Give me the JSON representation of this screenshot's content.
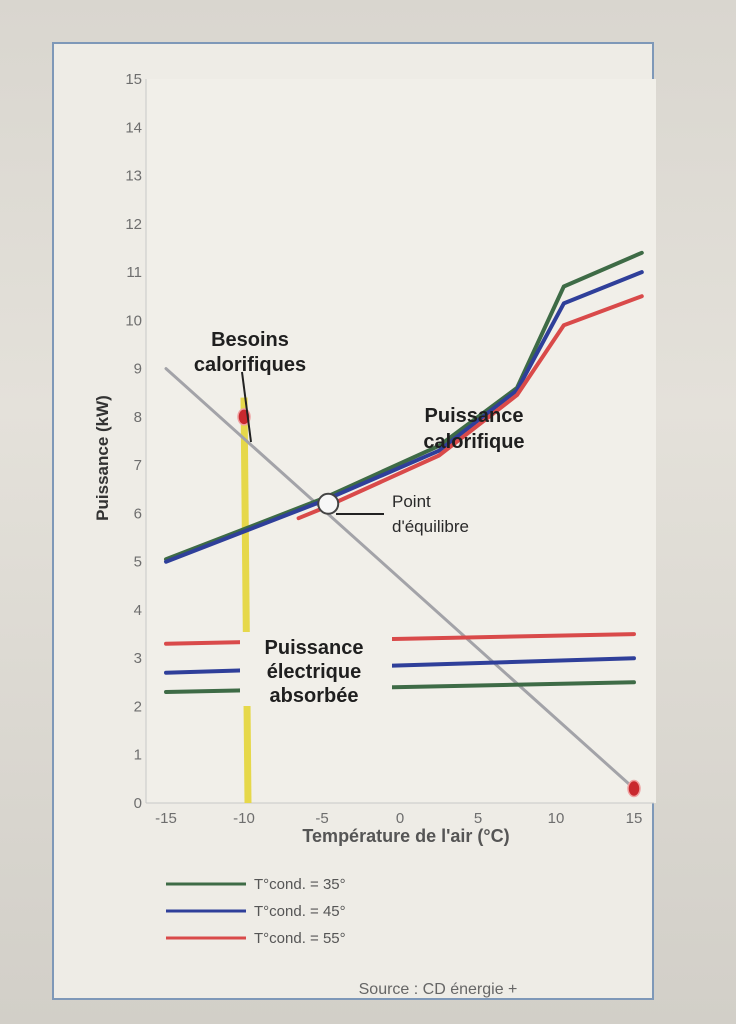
{
  "chart_data": {
    "type": "line",
    "title": "",
    "xlabel": "Température de l'air (°C)",
    "ylabel": "Puissance (kW)",
    "xlim": [
      -15,
      15
    ],
    "ylim": [
      0,
      15
    ],
    "x_ticks": [
      "-15",
      "-10",
      "-5",
      "0",
      "5",
      "10",
      "15"
    ],
    "y_ticks": [
      "0",
      "1",
      "2",
      "3",
      "4",
      "5",
      "6",
      "7",
      "8",
      "9",
      "10",
      "11",
      "12",
      "13",
      "14",
      "15"
    ],
    "grid": false,
    "legend_position": "bottom-left",
    "colors": {
      "cond35": "#3e6b46",
      "cond45": "#2f3f9a",
      "cond55": "#d94a4a",
      "besoins": "#a3a3a8",
      "marker_line": "#e6d84a"
    },
    "legend": [
      {
        "key": "cond35",
        "label": "T°cond. = 35°"
      },
      {
        "key": "cond45",
        "label": "T°cond. = 45°"
      },
      {
        "key": "cond55",
        "label": "T°cond. = 55°"
      }
    ],
    "series": [
      {
        "key": "cond35",
        "group": "puissance_calorifique",
        "points": [
          [
            -15,
            5.05
          ],
          [
            -5,
            6.3
          ],
          [
            2.5,
            7.4
          ],
          [
            7.5,
            8.6
          ],
          [
            10.5,
            10.7
          ],
          [
            15.5,
            11.4
          ]
        ]
      },
      {
        "key": "cond45",
        "group": "puissance_calorifique",
        "points": [
          [
            -15,
            5.0
          ],
          [
            -5,
            6.25
          ],
          [
            2.5,
            7.3
          ],
          [
            7.5,
            8.55
          ],
          [
            10.5,
            10.35
          ],
          [
            15.5,
            11.0
          ]
        ]
      },
      {
        "key": "cond55",
        "group": "puissance_calorifique",
        "points": [
          [
            -6.5,
            5.9
          ],
          [
            -5,
            6.1
          ],
          [
            2.5,
            7.2
          ],
          [
            7.5,
            8.45
          ],
          [
            10.5,
            9.9
          ],
          [
            15.5,
            10.5
          ]
        ]
      },
      {
        "key": "besoins",
        "group": "besoins_calorifiques",
        "points": [
          [
            -15,
            9.0
          ],
          [
            15,
            0.3
          ]
        ]
      },
      {
        "key": "cond55",
        "group": "puissance_electrique",
        "points": [
          [
            -15,
            3.3
          ],
          [
            15,
            3.5
          ]
        ]
      },
      {
        "key": "cond45",
        "group": "puissance_electrique",
        "points": [
          [
            -15,
            2.7
          ],
          [
            15,
            3.0
          ]
        ]
      },
      {
        "key": "cond35",
        "group": "puissance_electrique",
        "points": [
          [
            -15,
            2.3
          ],
          [
            15,
            2.5
          ]
        ]
      }
    ],
    "marker_line": {
      "x": -10
    },
    "markers": [
      {
        "type": "red-dot",
        "x": -10,
        "y": 8.0
      },
      {
        "type": "red-dot",
        "x": 15,
        "y": 0.3
      },
      {
        "type": "equilibrium-circle",
        "x": -4.6,
        "y": 6.2
      }
    ],
    "annotations": {
      "besoins": [
        "Besoins",
        "calorifiques"
      ],
      "puissance_calorifique": [
        "Puissance",
        "calorifique"
      ],
      "point_equilibre": [
        "Point",
        "d'équilibre"
      ],
      "puissance_electrique": [
        "Puissance",
        "électrique",
        "absorbée"
      ]
    },
    "source": "Source : CD énergie +"
  }
}
